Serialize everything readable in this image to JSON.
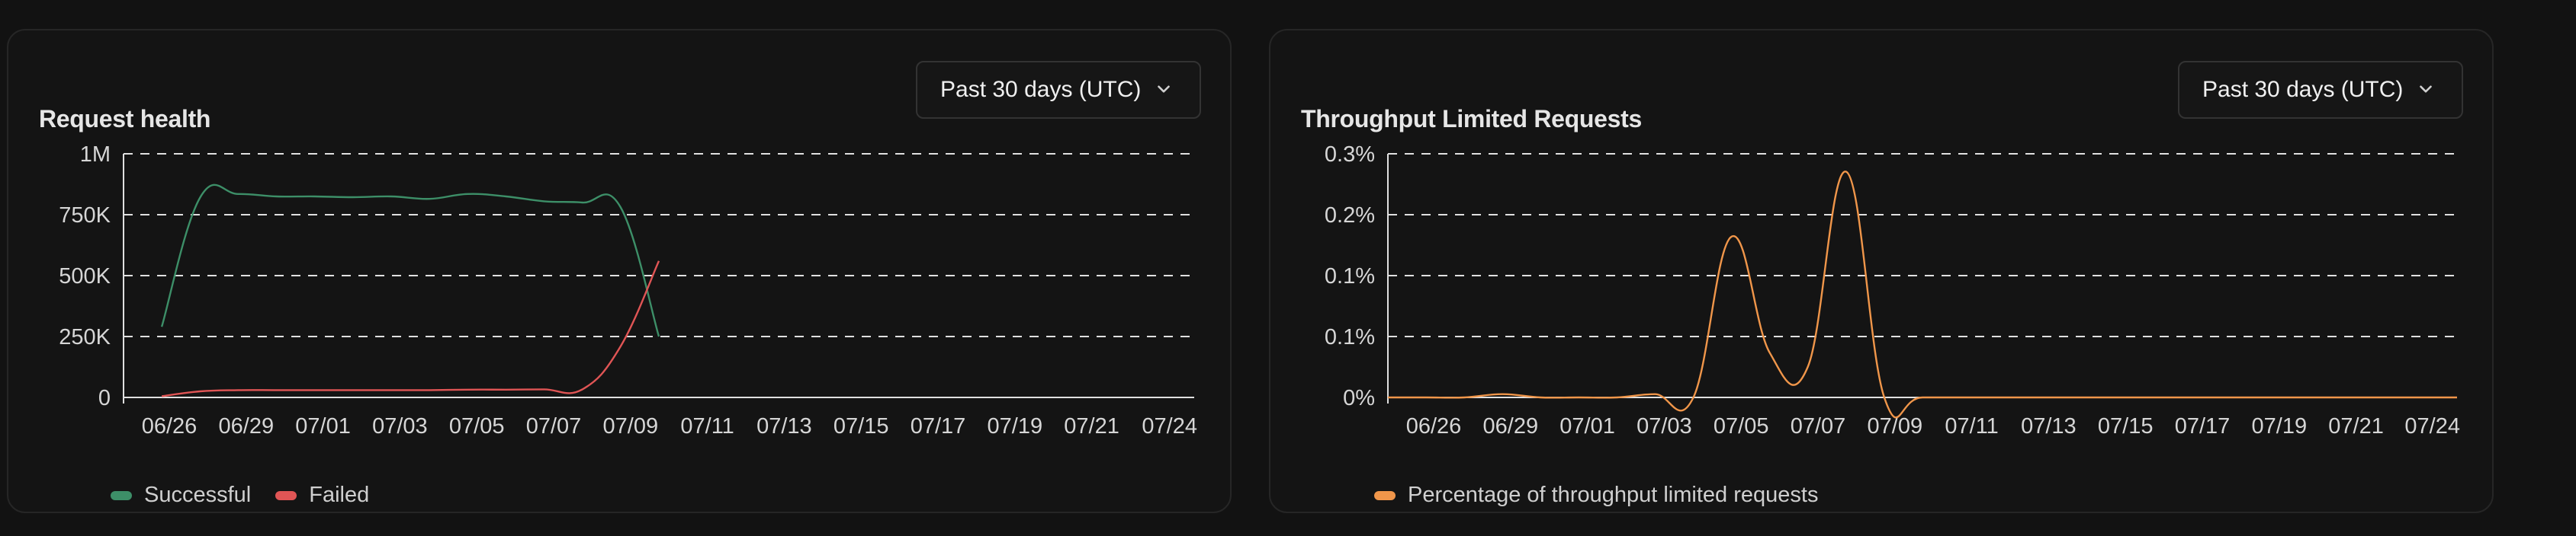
{
  "range_label": "Past 30 days (UTC)",
  "colors": {
    "successful": "#3d8f68",
    "failed": "#e05555",
    "throughput": "#f0964a",
    "grid": "#e0e0e0",
    "axis": "#e0e0e0"
  },
  "chart_data": [
    {
      "type": "line",
      "title": "Request health",
      "x_ticks": [
        "06/26",
        "06/29",
        "07/01",
        "07/03",
        "07/05",
        "07/07",
        "07/09",
        "07/11",
        "07/13",
        "07/15",
        "07/17",
        "07/19",
        "07/21",
        "07/24"
      ],
      "y_ticks": [
        "0",
        "250K",
        "500K",
        "750K",
        "1M"
      ],
      "ylim": [
        0,
        1000000
      ],
      "xlim": [
        "06/26",
        "07/24"
      ],
      "grid": true,
      "legend_position": "bottom-left",
      "series": [
        {
          "name": "Successful",
          "color_key": "successful",
          "points": [
            [
              "06/27",
              290000
            ],
            [
              "06/28",
              820000
            ],
            [
              "06/29",
              835000
            ],
            [
              "06/30",
              825000
            ],
            [
              "07/01",
              825000
            ],
            [
              "07/02",
              822000
            ],
            [
              "07/03",
              825000
            ],
            [
              "07/04",
              815000
            ],
            [
              "07/05",
              835000
            ],
            [
              "07/06",
              825000
            ],
            [
              "07/07",
              805000
            ],
            [
              "07/08",
              800000
            ],
            [
              "07/09",
              780000
            ],
            [
              "07/10",
              250000
            ]
          ]
        },
        {
          "name": "Failed",
          "color_key": "failed",
          "points": [
            [
              "06/27",
              5000
            ],
            [
              "06/28",
              25000
            ],
            [
              "06/29",
              30000
            ],
            [
              "06/30",
              30000
            ],
            [
              "07/01",
              30000
            ],
            [
              "07/02",
              30000
            ],
            [
              "07/03",
              30000
            ],
            [
              "07/04",
              30000
            ],
            [
              "07/05",
              32000
            ],
            [
              "07/06",
              32000
            ],
            [
              "07/07",
              33000
            ],
            [
              "07/08",
              33000
            ],
            [
              "07/09",
              210000
            ],
            [
              "07/10",
              560000
            ]
          ]
        }
      ]
    },
    {
      "type": "line",
      "title": "Throughput Limited Requests",
      "x_ticks": [
        "06/26",
        "06/29",
        "07/01",
        "07/03",
        "07/05",
        "07/07",
        "07/09",
        "07/11",
        "07/13",
        "07/15",
        "07/17",
        "07/19",
        "07/21",
        "07/24"
      ],
      "y_ticks": [
        "0%",
        "0.1%",
        "0.1%",
        "0.2%",
        "0.3%"
      ],
      "ylim": [
        0,
        0.3
      ],
      "xlim": [
        "06/26",
        "07/24"
      ],
      "grid": true,
      "legend_position": "bottom-left",
      "series": [
        {
          "name": "Percentage of throughput limited requests",
          "color_key": "throughput",
          "points": [
            [
              "06/26",
              0
            ],
            [
              "06/27",
              0
            ],
            [
              "06/28",
              0
            ],
            [
              "06/29",
              0.004
            ],
            [
              "06/30",
              0
            ],
            [
              "07/01",
              0
            ],
            [
              "07/02",
              0
            ],
            [
              "07/03",
              0.004
            ],
            [
              "07/04",
              0
            ],
            [
              "07/05",
              0.198
            ],
            [
              "07/06",
              0.055
            ],
            [
              "07/07",
              0.038
            ],
            [
              "07/08",
              0.278
            ],
            [
              "07/09",
              0
            ],
            [
              "07/10",
              0
            ],
            [
              "07/12",
              0
            ],
            [
              "07/15",
              0
            ],
            [
              "07/18",
              0
            ],
            [
              "07/21",
              0
            ],
            [
              "07/24",
              0
            ]
          ]
        }
      ]
    }
  ]
}
